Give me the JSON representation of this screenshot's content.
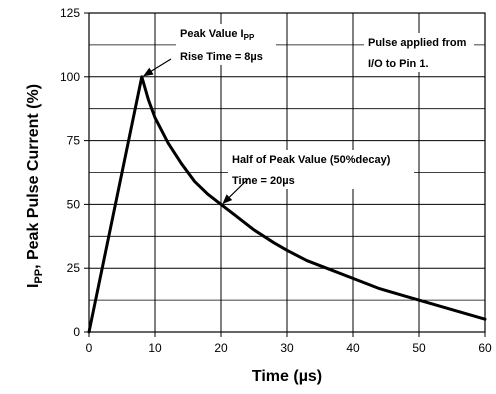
{
  "chart_data": {
    "type": "line",
    "title": "",
    "xlabel": "Time (µs)",
    "ylabel": {
      "main": "I",
      "sub": "PP",
      "rest": ", Peak Pulse Current (%)"
    },
    "xlim": [
      0,
      60
    ],
    "ylim": [
      0,
      125
    ],
    "x_ticks": [
      0,
      10,
      20,
      30,
      40,
      50,
      60
    ],
    "y_ticks": [
      0,
      25,
      50,
      75,
      100,
      125
    ],
    "x_tick_labels": [
      "0",
      "10",
      "20",
      "30",
      "40",
      "50",
      "60"
    ],
    "y_tick_labels": [
      "0",
      "25",
      "50",
      "75",
      "100",
      "125"
    ],
    "grid": true,
    "series": [
      {
        "x": [
          0,
          8,
          9,
          10,
          12,
          14,
          16,
          18,
          20,
          22,
          25,
          28,
          30,
          33,
          36,
          40,
          44,
          48,
          52,
          56,
          60
        ],
        "y": [
          0,
          100,
          91,
          84,
          74,
          66,
          59,
          54,
          50,
          46,
          40,
          35,
          32,
          28,
          25,
          21,
          17,
          14,
          11,
          8,
          5
        ],
        "color": "#000000"
      }
    ],
    "annotations": [
      {
        "lines": [
          {
            "text": "Peak Value I",
            "sub": "PP"
          },
          {
            "text": "Rise Time = 8µs",
            "sub": ""
          }
        ],
        "point": [
          8,
          100
        ]
      },
      {
        "lines": [
          {
            "text": "Half of Peak Value (50%decay)",
            "sub": ""
          },
          {
            "text": "Time = 20µs",
            "sub": ""
          }
        ],
        "point": [
          20,
          50
        ]
      },
      {
        "lines": [
          {
            "text": "Pulse applied from",
            "sub": ""
          },
          {
            "text": "I/O to Pin 1.",
            "sub": ""
          }
        ],
        "point": null
      }
    ]
  }
}
